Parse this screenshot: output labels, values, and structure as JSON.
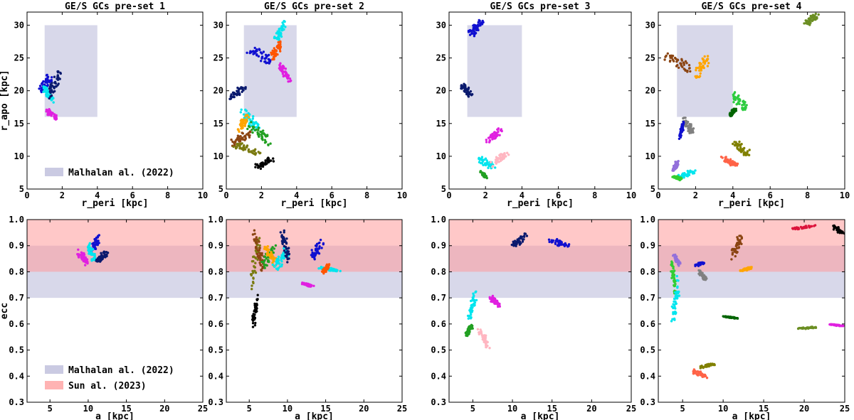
{
  "chart_data": [
    {
      "type": "scatter",
      "panel": "top-1",
      "title": "GE/S GCs pre-set 1",
      "xlabel": "r_peri [kpc]",
      "ylabel": "r_apo [kpc]",
      "xlim": [
        0,
        10
      ],
      "ylim": [
        5,
        32
      ],
      "xticks": [
        0,
        2,
        4,
        6,
        8,
        10
      ],
      "yticks": [
        5,
        10,
        15,
        20,
        25,
        30
      ],
      "bands": [
        {
          "label": "Malhalan al. (2022)",
          "x": [
            1,
            4
          ],
          "y": [
            16,
            30
          ],
          "color": "#b8b8d8"
        }
      ],
      "legend": {
        "placement": "bottom-left",
        "entries": [
          "Malhalan al. (2022)"
        ]
      },
      "series": [
        {
          "color": "#1010d0",
          "x": [
            0.6,
            1.4
          ],
          "y": [
            19.0,
            22.8
          ]
        },
        {
          "color": "#00e5ee",
          "x": [
            0.9,
            1.5
          ],
          "y": [
            18.0,
            21.0
          ]
        },
        {
          "color": "#0a1a6e",
          "x": [
            1.2,
            2.0
          ],
          "y": [
            18.5,
            23.5
          ]
        },
        {
          "color": "#e020e0",
          "x": [
            1.0,
            1.7
          ],
          "y": [
            15.5,
            17.5
          ]
        }
      ]
    },
    {
      "type": "scatter",
      "panel": "top-2",
      "title": "GE/S GCs pre-set 2",
      "xlabel": "r_peri [kpc]",
      "ylabel": "",
      "xlim": [
        0,
        10
      ],
      "ylim": [
        5,
        32
      ],
      "xticks": [
        0,
        2,
        4,
        6,
        8,
        10
      ],
      "yticks": [
        5,
        10,
        15,
        20,
        25,
        30
      ],
      "bands": [
        {
          "x": [
            1,
            4
          ],
          "y": [
            16,
            30
          ],
          "color": "#b8b8d8"
        }
      ],
      "series": [
        {
          "color": "#00e5ee",
          "x": [
            2.7,
            3.4
          ],
          "y": [
            27.0,
            30.8
          ]
        },
        {
          "color": "#1010d0",
          "x": [
            1.0,
            2.8
          ],
          "y": [
            24.0,
            27.0
          ]
        },
        {
          "color": "#ff5500",
          "x": [
            2.5,
            3.2
          ],
          "y": [
            24.5,
            27.8
          ]
        },
        {
          "color": "#e020e0",
          "x": [
            3.0,
            3.7
          ],
          "y": [
            21.0,
            24.5
          ]
        },
        {
          "color": "#0a1a6e",
          "x": [
            0.2,
            1.1
          ],
          "y": [
            18.5,
            21.0
          ]
        },
        {
          "color": "#00e5ee",
          "x": [
            0.8,
            2.0
          ],
          "y": [
            13.5,
            17.5
          ]
        },
        {
          "color": "#ffa500",
          "x": [
            0.6,
            1.3
          ],
          "y": [
            13.5,
            16.5
          ]
        },
        {
          "color": "#22a022",
          "x": [
            1.2,
            2.6
          ],
          "y": [
            11.5,
            15.5
          ]
        },
        {
          "color": "#8b4513",
          "x": [
            0.2,
            1.5
          ],
          "y": [
            11.5,
            14.0
          ]
        },
        {
          "color": "#7a7a10",
          "x": [
            0.2,
            2.0
          ],
          "y": [
            10.0,
            12.5
          ]
        },
        {
          "color": "#000000",
          "x": [
            1.6,
            2.7
          ],
          "y": [
            8.0,
            10.0
          ]
        }
      ]
    },
    {
      "type": "scatter",
      "panel": "top-3",
      "title": "GE/S GCs pre-set 3",
      "xlabel": "r_peri [kpc]",
      "ylabel": "",
      "xlim": [
        0,
        10
      ],
      "ylim": [
        5,
        32
      ],
      "xticks": [
        0,
        2,
        4,
        6,
        8,
        10
      ],
      "yticks": [
        5,
        10,
        15,
        20,
        25,
        30
      ],
      "bands": [
        {
          "x": [
            1,
            4
          ],
          "y": [
            16,
            30
          ],
          "color": "#b8b8d8"
        }
      ],
      "series": [
        {
          "color": "#1010d0",
          "x": [
            1.0,
            1.9
          ],
          "y": [
            28.0,
            31.0
          ]
        },
        {
          "color": "#0a1a6e",
          "x": [
            0.6,
            1.3
          ],
          "y": [
            18.8,
            21.5
          ]
        },
        {
          "color": "#e020e0",
          "x": [
            2.0,
            2.9
          ],
          "y": [
            12.0,
            14.3
          ]
        },
        {
          "color": "#00e5ee",
          "x": [
            1.5,
            2.6
          ],
          "y": [
            8.0,
            10.0
          ]
        },
        {
          "color": "#ffb6c1",
          "x": [
            2.3,
            3.3
          ],
          "y": [
            8.2,
            11.0
          ]
        },
        {
          "color": "#22a022",
          "x": [
            1.7,
            2.1
          ],
          "y": [
            6.5,
            7.8
          ]
        }
      ]
    },
    {
      "type": "scatter",
      "panel": "top-4",
      "title": "GE/S GCs pre-set 4",
      "xlabel": "r_peri [kpc]",
      "ylabel": "",
      "xlim": [
        0,
        10
      ],
      "ylim": [
        5,
        32
      ],
      "xticks": [
        0,
        2,
        4,
        6,
        8,
        10
      ],
      "yticks": [
        5,
        10,
        15,
        20,
        25,
        30
      ],
      "bands": [
        {
          "x": [
            1,
            4
          ],
          "y": [
            16,
            30
          ],
          "color": "#b8b8d8"
        }
      ],
      "series": [
        {
          "color": "#6b8e23",
          "x": [
            7.8,
            8.6
          ],
          "y": [
            29.8,
            32.0
          ]
        },
        {
          "color": "#8b4513",
          "x": [
            0.3,
            1.9
          ],
          "y": [
            22.5,
            26.0
          ]
        },
        {
          "color": "#ffa500",
          "x": [
            1.9,
            2.8
          ],
          "y": [
            21.5,
            26.0
          ]
        },
        {
          "color": "#2ecc40",
          "x": [
            3.9,
            4.8
          ],
          "y": [
            16.5,
            20.0
          ]
        },
        {
          "color": "#006400",
          "x": [
            3.8,
            4.2
          ],
          "y": [
            16.0,
            17.5
          ]
        },
        {
          "color": "#808080",
          "x": [
            1.3,
            2.0
          ],
          "y": [
            13.0,
            16.0
          ]
        },
        {
          "color": "#1010d0",
          "x": [
            1.1,
            1.4
          ],
          "y": [
            12.5,
            15.5
          ]
        },
        {
          "color": "#808000",
          "x": [
            4.0,
            4.9
          ],
          "y": [
            10.0,
            12.5
          ]
        },
        {
          "color": "#9370db",
          "x": [
            0.7,
            1.1
          ],
          "y": [
            7.5,
            9.5
          ]
        },
        {
          "color": "#ff6347",
          "x": [
            3.3,
            4.3
          ],
          "y": [
            8.3,
            10.0
          ]
        },
        {
          "color": "#00e5ee",
          "x": [
            1.0,
            2.1
          ],
          "y": [
            6.5,
            8.0
          ]
        },
        {
          "color": "#32cd32",
          "x": [
            0.7,
            1.3
          ],
          "y": [
            6.3,
            7.2
          ]
        }
      ]
    },
    {
      "type": "scatter",
      "panel": "bottom-1",
      "xlabel": "a [kpc]",
      "ylabel": "ecc",
      "xlim": [
        2,
        25
      ],
      "ylim": [
        0.3,
        1.0
      ],
      "xticks": [
        5,
        10,
        15,
        20,
        25
      ],
      "yticks": [
        0.3,
        0.4,
        0.5,
        0.6,
        0.7,
        0.8,
        0.9,
        1.0
      ],
      "bands": [
        {
          "label": "Malhalan al. (2022)",
          "y": [
            0.7,
            0.9
          ],
          "color": "#b8b8d8"
        },
        {
          "label": "Sun al. (2023)",
          "y": [
            0.8,
            1.0
          ],
          "color": "#ff9a9a"
        }
      ],
      "legend": {
        "placement": "bottom-left",
        "entries": [
          "Malhalan al. (2022)",
          "Sun al. (2023)"
        ]
      },
      "series": [
        {
          "color": "#1010d0",
          "x": [
            10.2,
            11.5
          ],
          "y": [
            0.85,
            0.95
          ]
        },
        {
          "color": "#00e5ee",
          "x": [
            9.8,
            11.0
          ],
          "y": [
            0.83,
            0.92
          ]
        },
        {
          "color": "#0a1a6e",
          "x": [
            11.0,
            12.8
          ],
          "y": [
            0.83,
            0.89
          ]
        },
        {
          "color": "#e020e0",
          "x": [
            8.5,
            10.2
          ],
          "y": [
            0.82,
            0.89
          ]
        }
      ]
    },
    {
      "type": "scatter",
      "panel": "bottom-2",
      "xlabel": "a [kpc]",
      "ylabel": "",
      "xlim": [
        2,
        25
      ],
      "ylim": [
        0.3,
        1.0
      ],
      "xticks": [
        5,
        10,
        15,
        20,
        25
      ],
      "yticks": [
        0.3,
        0.4,
        0.5,
        0.6,
        0.7,
        0.8,
        0.9,
        1.0
      ],
      "bands": [
        {
          "y": [
            0.7,
            0.9
          ],
          "color": "#b8b8d8"
        },
        {
          "y": [
            0.8,
            1.0
          ],
          "color": "#ff9a9a"
        }
      ],
      "series": [
        {
          "color": "#7a7a10",
          "x": [
            5.0,
            6.5
          ],
          "y": [
            0.72,
            0.97
          ]
        },
        {
          "color": "#8b4513",
          "x": [
            5.5,
            7.0
          ],
          "y": [
            0.78,
            0.97
          ]
        },
        {
          "color": "#22a022",
          "x": [
            6.5,
            8.5
          ],
          "y": [
            0.8,
            0.91
          ]
        },
        {
          "color": "#ffa500",
          "x": [
            7.0,
            8.5
          ],
          "y": [
            0.82,
            0.91
          ]
        },
        {
          "color": "#00e5ee",
          "x": [
            8.0,
            10.5
          ],
          "y": [
            0.8,
            0.9
          ]
        },
        {
          "color": "#0a1a6e",
          "x": [
            9.0,
            10.5
          ],
          "y": [
            0.82,
            0.98
          ]
        },
        {
          "color": "#1010d0",
          "x": [
            13.0,
            14.8
          ],
          "y": [
            0.84,
            0.93
          ]
        },
        {
          "color": "#00e5ee",
          "x": [
            14.0,
            17.0
          ],
          "y": [
            0.8,
            0.82
          ]
        },
        {
          "color": "#ff5500",
          "x": [
            14.5,
            15.5
          ],
          "y": [
            0.79,
            0.83
          ]
        },
        {
          "color": "#e020e0",
          "x": [
            11.8,
            13.5
          ],
          "y": [
            0.74,
            0.76
          ]
        },
        {
          "color": "#000000",
          "x": [
            5.4,
            6.2
          ],
          "y": [
            0.57,
            0.72
          ]
        }
      ]
    },
    {
      "type": "scatter",
      "panel": "bottom-3",
      "xlabel": "a [kpc]",
      "ylabel": "",
      "xlim": [
        2,
        25
      ],
      "ylim": [
        0.3,
        1.0
      ],
      "xticks": [
        5,
        10,
        15,
        20,
        25
      ],
      "yticks": [
        0.3,
        0.4,
        0.5,
        0.6,
        0.7,
        0.8,
        0.9,
        1.0
      ],
      "bands": [
        {
          "y": [
            0.7,
            0.9
          ],
          "color": "#b8b8d8"
        },
        {
          "y": [
            0.8,
            1.0
          ],
          "color": "#ff9a9a"
        }
      ],
      "series": [
        {
          "color": "#0a1a6e",
          "x": [
            9.8,
            11.8
          ],
          "y": [
            0.89,
            0.95
          ]
        },
        {
          "color": "#1010d0",
          "x": [
            14.5,
            17.2
          ],
          "y": [
            0.89,
            0.93
          ]
        },
        {
          "color": "#00e5ee",
          "x": [
            4.4,
            5.5
          ],
          "y": [
            0.6,
            0.74
          ]
        },
        {
          "color": "#e020e0",
          "x": [
            7.0,
            8.5
          ],
          "y": [
            0.66,
            0.71
          ]
        },
        {
          "color": "#22a022",
          "x": [
            4.0,
            5.0
          ],
          "y": [
            0.55,
            0.6
          ]
        },
        {
          "color": "#ffb6c1",
          "x": [
            5.5,
            7.2
          ],
          "y": [
            0.5,
            0.59
          ]
        }
      ]
    },
    {
      "type": "scatter",
      "panel": "bottom-4",
      "xlabel": "a [kpc]",
      "ylabel": "",
      "xlim": [
        2,
        25
      ],
      "ylim": [
        0.3,
        1.0
      ],
      "xticks": [
        5,
        10,
        15,
        20,
        25
      ],
      "yticks": [
        0.3,
        0.4,
        0.5,
        0.6,
        0.7,
        0.8,
        0.9,
        1.0
      ],
      "bands": [
        {
          "y": [
            0.7,
            0.9
          ],
          "color": "#b8b8d8"
        },
        {
          "y": [
            0.8,
            1.0
          ],
          "color": "#ff9a9a"
        }
      ],
      "series": [
        {
          "color": "#dc143c",
          "x": [
            18.5,
            21.5
          ],
          "y": [
            0.96,
            0.98
          ]
        },
        {
          "color": "#000000",
          "x": [
            23.5,
            25.0
          ],
          "y": [
            0.94,
            0.98
          ]
        },
        {
          "color": "#8b4513",
          "x": [
            11.0,
            12.5
          ],
          "y": [
            0.84,
            0.96
          ]
        },
        {
          "color": "#9370db",
          "x": [
            3.8,
            4.8
          ],
          "y": [
            0.82,
            0.87
          ]
        },
        {
          "color": "#1010d0",
          "x": [
            6.5,
            7.8
          ],
          "y": [
            0.82,
            0.84
          ]
        },
        {
          "color": "#808080",
          "x": [
            7.0,
            8.0
          ],
          "y": [
            0.76,
            0.81
          ]
        },
        {
          "color": "#ffa500",
          "x": [
            12.0,
            13.8
          ],
          "y": [
            0.8,
            0.82
          ]
        },
        {
          "color": "#32cd32",
          "x": [
            3.5,
            4.2
          ],
          "y": [
            0.7,
            0.87
          ]
        },
        {
          "color": "#00e5ee",
          "x": [
            3.6,
            4.6
          ],
          "y": [
            0.56,
            0.8
          ]
        },
        {
          "color": "#006400",
          "x": [
            10.0,
            12.0
          ],
          "y": [
            0.62,
            0.63
          ]
        },
        {
          "color": "#6b8e23",
          "x": [
            19.0,
            22.0
          ],
          "y": [
            0.58,
            0.59
          ]
        },
        {
          "color": "#e020e0",
          "x": [
            23.0,
            25.0
          ],
          "y": [
            0.59,
            0.6
          ]
        },
        {
          "color": "#808000",
          "x": [
            7.0,
            9.0
          ],
          "y": [
            0.43,
            0.45
          ]
        },
        {
          "color": "#ff6347",
          "x": [
            6.0,
            8.0
          ],
          "y": [
            0.39,
            0.43
          ]
        }
      ]
    }
  ]
}
